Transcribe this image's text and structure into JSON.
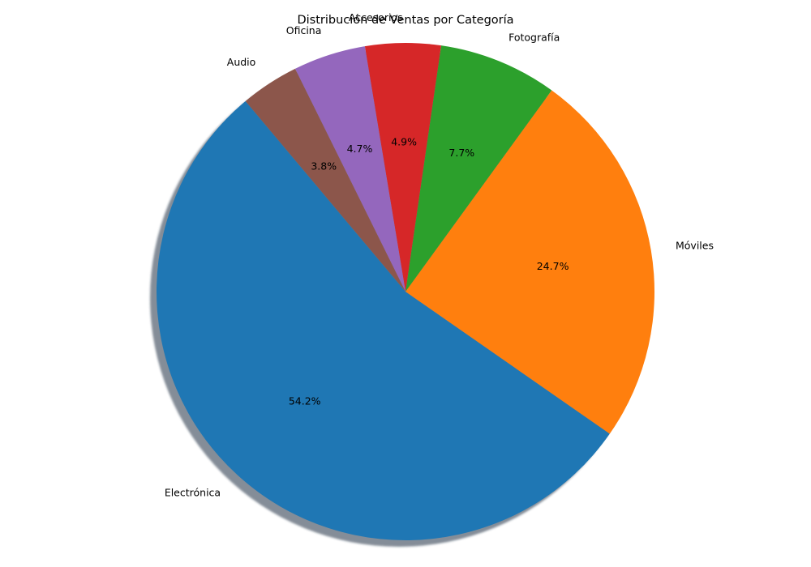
{
  "chart_data": {
    "type": "pie",
    "title": "Distribución de Ventas por Categoría",
    "start_angle_deg": 130,
    "direction": "counterclockwise",
    "shadow": true,
    "slices": [
      {
        "label": "Electrónica",
        "value": 54.2,
        "pct_label": "54.2%",
        "color": "#1f77b4"
      },
      {
        "label": "Móviles",
        "value": 24.7,
        "pct_label": "24.7%",
        "color": "#ff7f0e"
      },
      {
        "label": "Fotografía",
        "value": 7.7,
        "pct_label": "7.7%",
        "color": "#2ca02c"
      },
      {
        "label": "Accesorios",
        "value": 4.9,
        "pct_label": "4.9%",
        "color": "#d62728"
      },
      {
        "label": "Oficina",
        "value": 4.7,
        "pct_label": "4.7%",
        "color": "#9467bd"
      },
      {
        "label": "Audio",
        "value": 3.8,
        "pct_label": "3.8%",
        "color": "#8c564b"
      }
    ]
  }
}
